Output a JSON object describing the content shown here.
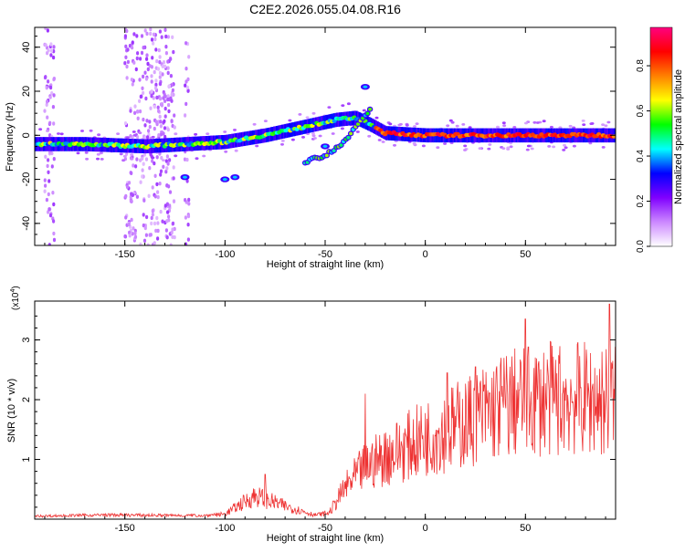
{
  "title": "C2E2.2026.055.04.08.R16",
  "chart_data": [
    {
      "type": "heatmap",
      "name": "spectrogram",
      "xlabel": "Height of straight line (km)",
      "ylabel": "Frequency (Hz)",
      "xlim": [
        -195,
        95
      ],
      "ylim": [
        -50,
        49
      ],
      "xticks": [
        -150,
        -100,
        -50,
        0,
        50
      ],
      "yticks": [
        -40,
        -20,
        0,
        20,
        40
      ],
      "colorbar": {
        "label": "Normalized spectral amplitude",
        "range": [
          0,
          0.97
        ],
        "ticks": [
          0.0,
          0.2,
          0.4,
          0.6,
          0.8
        ],
        "tick_labels": [
          "0.0",
          "0.2",
          "0.4",
          "0.6",
          "0.8"
        ],
        "colormap": [
          "#ffffff",
          "#cc88ff",
          "#8000ff",
          "#0000ff",
          "#00ffff",
          "#00ff00",
          "#ffff00",
          "#ff8000",
          "#ff0000",
          "#ff0080"
        ]
      },
      "features": {
        "main_track": [
          [
            -195,
            -4
          ],
          [
            -170,
            -4
          ],
          [
            -140,
            -5
          ],
          [
            -120,
            -4
          ],
          [
            -100,
            -3
          ],
          [
            -80,
            0
          ],
          [
            -60,
            4
          ],
          [
            -45,
            7
          ],
          [
            -35,
            8
          ],
          [
            -28,
            5
          ],
          [
            -20,
            1
          ],
          [
            0,
            0
          ],
          [
            40,
            0
          ],
          [
            95,
            0
          ]
        ],
        "branch_track": [
          [
            -60,
            -12
          ],
          [
            -50,
            -9
          ],
          [
            -40,
            -3
          ],
          [
            -33,
            6
          ],
          [
            -27,
            12
          ]
        ],
        "isolated_blobs": [
          [
            -120,
            -19
          ],
          [
            -100,
            -20
          ],
          [
            -95,
            -19
          ],
          [
            -50,
            -5
          ],
          [
            -30,
            22
          ]
        ],
        "noise_columns_x": [
          [
            -190,
            -185
          ],
          [
            -150,
            -125
          ],
          [
            -120,
            -118
          ]
        ]
      }
    },
    {
      "type": "line",
      "name": "snr",
      "xlabel": "Height of straight line (km)",
      "ylabel": "SNR (10 * v/v)",
      "scale_label": "(x10",
      "scale_exponent": "4",
      "scale_suffix": ")",
      "xlim": [
        -195,
        95
      ],
      "ylim": [
        0,
        3.65
      ],
      "xticks": [
        -150,
        -100,
        -50,
        0,
        50
      ],
      "yticks": [
        1,
        2,
        3
      ],
      "series_color": "#ee3333",
      "envelope": [
        [
          -195,
          0.05
        ],
        [
          -160,
          0.07
        ],
        [
          -110,
          0.06
        ],
        [
          -100,
          0.1
        ],
        [
          -85,
          0.45
        ],
        [
          -70,
          0.25
        ],
        [
          -55,
          0.08
        ],
        [
          -48,
          0.12
        ],
        [
          -40,
          0.6
        ],
        [
          -30,
          1.0
        ],
        [
          -20,
          1.2
        ],
        [
          0,
          1.55
        ],
        [
          20,
          1.85
        ],
        [
          40,
          2.2
        ],
        [
          60,
          2.3
        ],
        [
          80,
          2.3
        ],
        [
          95,
          2.25
        ]
      ],
      "peaks": [
        [
          -80,
          0.75
        ],
        [
          -30,
          2.1
        ],
        [
          11,
          2.45
        ],
        [
          25,
          2.55
        ],
        [
          50,
          3.35
        ],
        [
          92,
          3.6
        ]
      ]
    }
  ]
}
